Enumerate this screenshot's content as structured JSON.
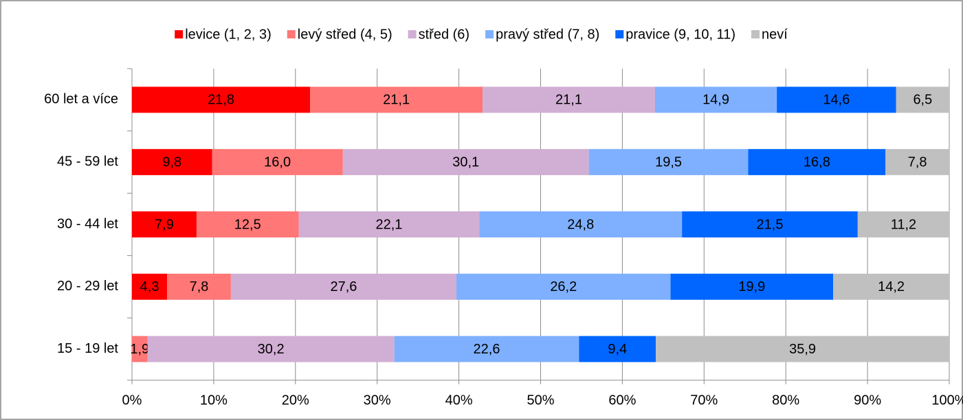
{
  "chart_data": {
    "type": "stacked-bar-horizontal",
    "categories": [
      "60 let a více",
      "45 - 59 let",
      "30 - 44 let",
      "20 - 29 let",
      "15 - 19 let"
    ],
    "series": [
      {
        "name": "levice (1, 2, 3)",
        "color": "#ff0000",
        "values": [
          21.8,
          9.8,
          7.9,
          4.3,
          0
        ],
        "value_labels": [
          "21,8",
          "9,8",
          "7,9",
          "4,3",
          null
        ]
      },
      {
        "name": "levý střed (4, 5)",
        "color": "#ff7777",
        "values": [
          21.1,
          16.0,
          12.5,
          7.8,
          1.9
        ],
        "value_labels": [
          "21,1",
          "16,0",
          "12,5",
          "7,8",
          "1,9"
        ]
      },
      {
        "name": "střed (6)",
        "color": "#d1aed3",
        "values": [
          21.1,
          30.1,
          22.1,
          27.6,
          30.2
        ],
        "value_labels": [
          "21,1",
          "30,1",
          "22,1",
          "27,6",
          "30,2"
        ]
      },
      {
        "name": "pravý střed (7, 8)",
        "color": "#7fb0ff",
        "values": [
          14.9,
          19.5,
          24.8,
          26.2,
          22.6
        ],
        "value_labels": [
          "14,9",
          "19,5",
          "24,8",
          "26,2",
          "22,6"
        ]
      },
      {
        "name": "pravice (9, 10, 11)",
        "color": "#0066ff",
        "values": [
          14.6,
          16.8,
          21.5,
          19.9,
          9.4
        ],
        "value_labels": [
          "14,6",
          "16,8",
          "21,5",
          "19,9",
          "9,4"
        ]
      },
      {
        "name": "neví",
        "color": "#c0c0c0",
        "values": [
          6.5,
          7.8,
          11.2,
          14.2,
          35.9
        ],
        "value_labels": [
          "6,5",
          "7,8",
          "11,2",
          "14,2",
          "35,9"
        ]
      }
    ],
    "xlim": [
      0,
      100
    ],
    "xticks": [
      {
        "value": 0,
        "label": "0%"
      },
      {
        "value": 10,
        "label": "10%"
      },
      {
        "value": 20,
        "label": "20%"
      },
      {
        "value": 30,
        "label": "30%"
      },
      {
        "value": 40,
        "label": "40%"
      },
      {
        "value": 50,
        "label": "50%"
      },
      {
        "value": 60,
        "label": "60%"
      },
      {
        "value": 70,
        "label": "70%"
      },
      {
        "value": 80,
        "label": "80%"
      },
      {
        "value": 90,
        "label": "90%"
      },
      {
        "value": 100,
        "label": "100%"
      }
    ],
    "grid": true,
    "legend": "top"
  }
}
